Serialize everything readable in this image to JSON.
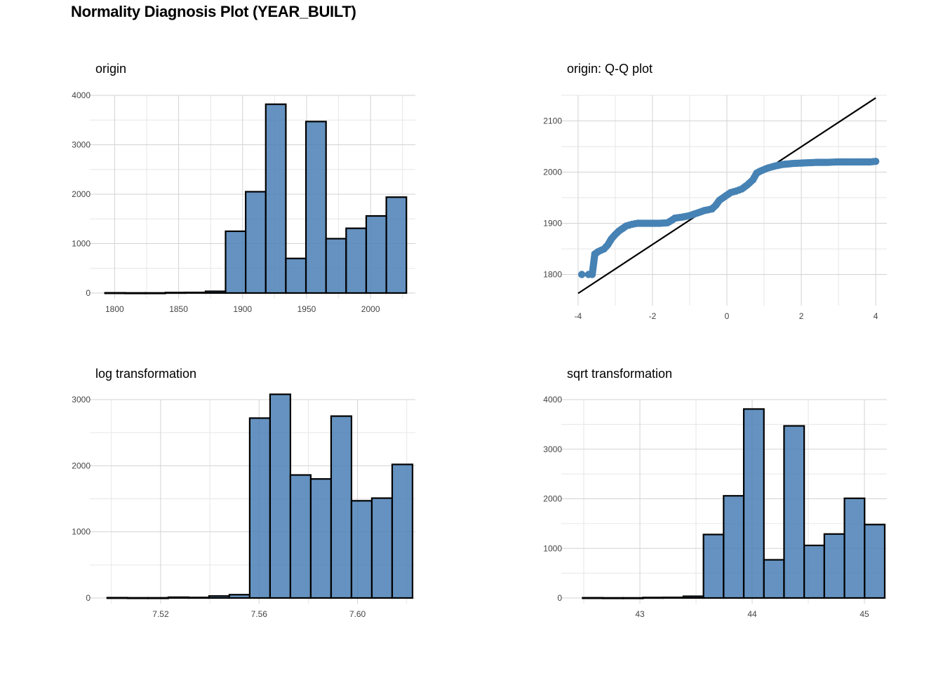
{
  "title": "Normality Diagnosis Plot (YEAR_BUILT)",
  "colors": {
    "bar_fill": "#4a7fb5",
    "bar_edge": "#000000",
    "point": "#4682b4",
    "line": "#000000",
    "grid": "#d3d3d3"
  },
  "chart_data": [
    {
      "type": "bar",
      "title": "origin",
      "xlim": [
        1785,
        2035
      ],
      "ylim": [
        0,
        4000
      ],
      "x_ticks": [
        1800,
        1850,
        1900,
        1950,
        2000
      ],
      "x_tick_labels": [
        "1800",
        "1850",
        "1900",
        "1950",
        "2000"
      ],
      "y_ticks": [
        0,
        1000,
        2000,
        3000,
        4000
      ],
      "y_tick_labels": [
        "0",
        "1000",
        "2000",
        "3000",
        "4000"
      ],
      "bin_start": 1792.5,
      "bin_width": 15.7,
      "values": [
        5,
        3,
        3,
        10,
        12,
        35,
        1250,
        2050,
        3820,
        700,
        3470,
        1100,
        1310,
        1560,
        1940
      ],
      "grid": true
    },
    {
      "type": "scatter",
      "title": "origin: Q-Q plot",
      "xlim": [
        -4.3,
        4.3
      ],
      "ylim": [
        1750,
        2150
      ],
      "x_ticks": [
        -4,
        -2,
        0,
        2,
        4
      ],
      "x_tick_labels": [
        "-4",
        "-2",
        "0",
        "2",
        "4"
      ],
      "y_ticks": [
        1800,
        1900,
        2000,
        2100
      ],
      "y_tick_labels": [
        "1800",
        "1900",
        "2000",
        "2100"
      ],
      "points": [
        [
          -3.9,
          1800
        ],
        [
          -3.72,
          1800
        ],
        [
          -3.62,
          1800
        ],
        [
          -3.55,
          1840
        ],
        [
          -3.45,
          1845
        ],
        [
          -3.3,
          1850
        ],
        [
          -3.2,
          1858
        ],
        [
          -3.1,
          1870
        ],
        [
          -3.0,
          1878
        ],
        [
          -2.9,
          1885
        ],
        [
          -2.8,
          1890
        ],
        [
          -2.7,
          1895
        ],
        [
          -2.55,
          1898
        ],
        [
          -2.4,
          1900
        ],
        [
          -2.2,
          1900
        ],
        [
          -2.0,
          1900
        ],
        [
          -1.8,
          1900
        ],
        [
          -1.6,
          1901
        ],
        [
          -1.5,
          1905
        ],
        [
          -1.4,
          1910
        ],
        [
          -1.2,
          1912
        ],
        [
          -1.0,
          1915
        ],
        [
          -0.8,
          1920
        ],
        [
          -0.6,
          1925
        ],
        [
          -0.4,
          1928
        ],
        [
          -0.3,
          1935
        ],
        [
          -0.2,
          1945
        ],
        [
          -0.1,
          1950
        ],
        [
          0.0,
          1955
        ],
        [
          0.1,
          1960
        ],
        [
          0.25,
          1963
        ],
        [
          0.4,
          1967
        ],
        [
          0.55,
          1975
        ],
        [
          0.7,
          1985
        ],
        [
          0.8,
          1998
        ],
        [
          0.9,
          2002
        ],
        [
          1.1,
          2008
        ],
        [
          1.3,
          2012
        ],
        [
          1.5,
          2015
        ],
        [
          1.8,
          2017
        ],
        [
          2.1,
          2018
        ],
        [
          2.4,
          2019
        ],
        [
          2.7,
          2019
        ],
        [
          3.0,
          2020
        ],
        [
          3.3,
          2020
        ],
        [
          3.6,
          2020
        ],
        [
          3.85,
          2020
        ],
        [
          4.0,
          2021
        ]
      ],
      "reference_line": [
        [
          -4,
          1763
        ],
        [
          4,
          2145
        ]
      ],
      "grid": true
    },
    {
      "type": "bar",
      "title": "log transformation",
      "xlim": [
        7.4935,
        7.6235
      ],
      "ylim": [
        0,
        3000
      ],
      "x_ticks": [
        7.52,
        7.56,
        7.6
      ],
      "x_tick_labels": [
        "7.52",
        "7.56",
        "7.60"
      ],
      "y_ticks": [
        0,
        1000,
        2000,
        3000
      ],
      "y_tick_labels": [
        "0",
        "1000",
        "2000",
        "3000"
      ],
      "bin_start": 7.4983,
      "bin_width": 0.00827,
      "values": [
        5,
        3,
        3,
        12,
        8,
        30,
        50,
        2720,
        3080,
        1860,
        1800,
        2750,
        1470,
        1510,
        2020
      ],
      "grid": true
    },
    {
      "type": "bar",
      "title": "sqrt transformation",
      "xlim": [
        42.35,
        45.2
      ],
      "ylim": [
        0,
        4000
      ],
      "x_ticks": [
        43,
        44,
        45
      ],
      "x_tick_labels": [
        "43",
        "44",
        "45"
      ],
      "y_ticks": [
        0,
        1000,
        2000,
        3000,
        4000
      ],
      "y_tick_labels": [
        "0",
        "1000",
        "2000",
        "3000",
        "4000"
      ],
      "bin_start": 42.49,
      "bin_width": 0.1794,
      "values": [
        5,
        3,
        3,
        10,
        12,
        35,
        1280,
        2060,
        3810,
        770,
        3470,
        1060,
        1290,
        2010,
        1480
      ],
      "grid": true
    }
  ]
}
